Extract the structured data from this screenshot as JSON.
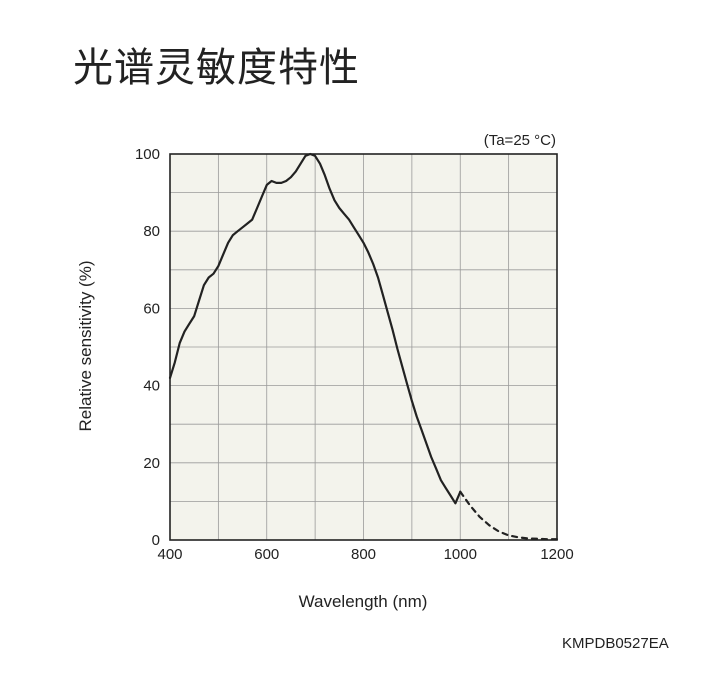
{
  "page_title": "光谱灵敏度特性",
  "document_code": "KMPDB0527EA",
  "chart_data": {
    "type": "line",
    "condition_note": "(Ta=25 °C)",
    "xlabel": "Wavelength (nm)",
    "ylabel": "Relative sensitivity (%)",
    "xlim": [
      400,
      1200
    ],
    "ylim": [
      0,
      100
    ],
    "x_ticks": [
      400,
      600,
      800,
      1000,
      1200
    ],
    "y_ticks": [
      0,
      20,
      40,
      60,
      80,
      100
    ],
    "grid": true,
    "series": [
      {
        "style": "solid",
        "x": [
          400,
          410,
          420,
          430,
          440,
          450,
          460,
          470,
          480,
          490,
          500,
          510,
          520,
          530,
          540,
          550,
          560,
          570,
          580,
          590,
          600,
          610,
          620,
          630,
          640,
          650,
          660,
          670,
          680,
          690,
          700,
          710,
          720,
          730,
          740,
          750,
          760,
          770,
          780,
          790,
          800,
          810,
          820,
          830,
          840,
          850,
          860,
          870,
          880,
          890,
          900,
          910,
          920,
          930,
          940,
          950,
          960,
          970,
          980,
          990,
          1000
        ],
        "y": [
          42,
          46,
          51,
          54,
          56,
          58,
          62,
          66,
          68,
          69,
          71,
          74,
          77,
          79,
          80,
          81,
          82,
          83,
          86,
          89,
          92,
          93,
          92.5,
          92.5,
          93,
          94,
          95.5,
          97.5,
          99.5,
          100,
          99.5,
          97.5,
          94.5,
          91,
          88,
          86,
          84.5,
          83,
          81,
          79,
          77,
          74.5,
          71.5,
          68,
          63.5,
          59,
          54.5,
          49.5,
          45,
          40.5,
          36,
          32,
          28.5,
          25,
          21.5,
          18.5,
          15.5,
          13.5,
          11.5,
          9.5,
          12.5
        ]
      },
      {
        "style": "dashed",
        "x": [
          1000,
          1020,
          1040,
          1060,
          1080,
          1100,
          1120,
          1140,
          1160,
          1180,
          1200
        ],
        "y": [
          12.5,
          9,
          6,
          3.8,
          2.2,
          1.2,
          0.7,
          0.4,
          0.3,
          0.2,
          0.2
        ]
      }
    ]
  }
}
